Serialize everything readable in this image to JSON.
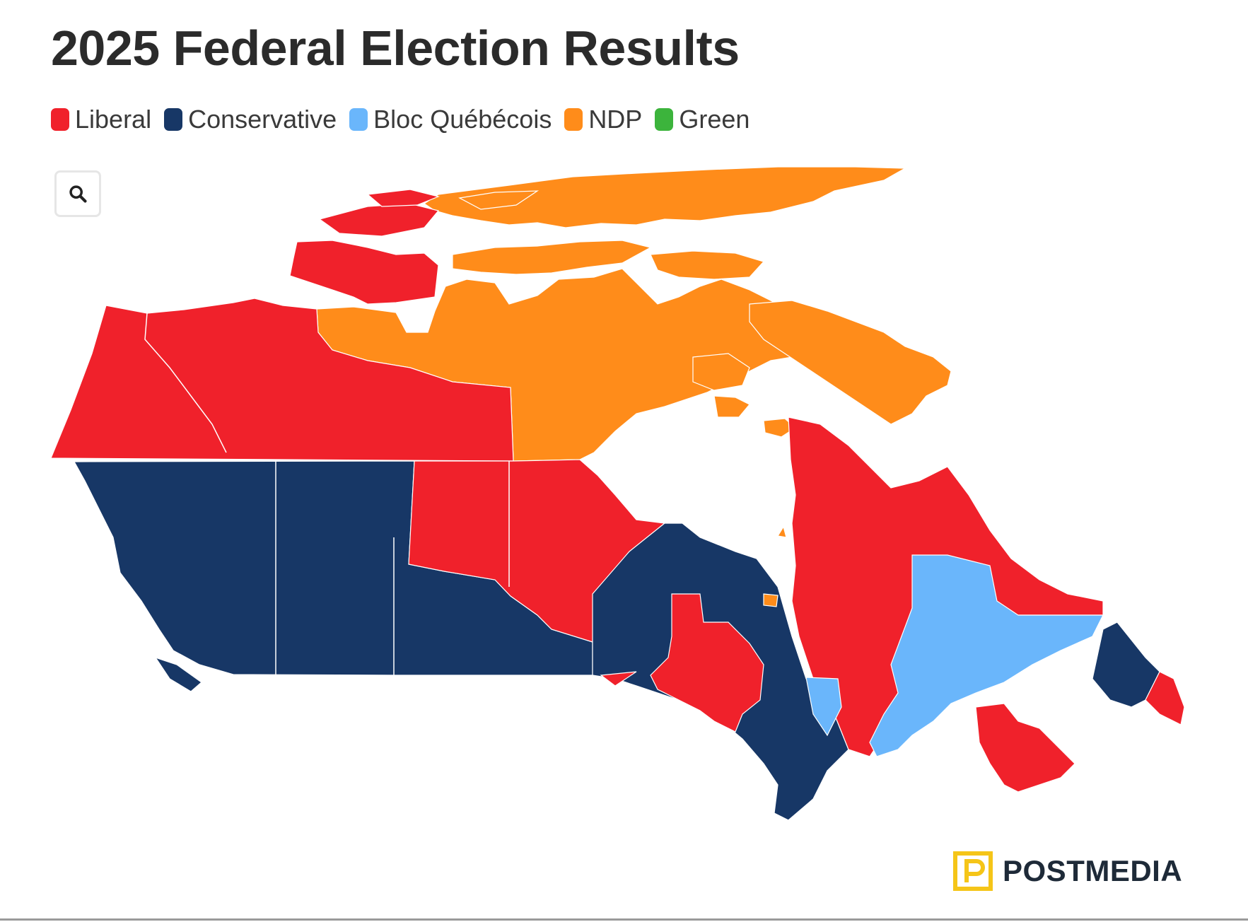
{
  "title": "2025 Federal Election Results",
  "legend": [
    {
      "label": "Liberal",
      "color": "#f0212b"
    },
    {
      "label": "Conservative",
      "color": "#173766"
    },
    {
      "label": "Bloc Québécois",
      "color": "#6ab6fb"
    },
    {
      "label": "NDP",
      "color": "#ff8c1a"
    },
    {
      "label": "Green",
      "color": "#3cb43c"
    }
  ],
  "controls": {
    "zoom_icon": "search-icon"
  },
  "map": {
    "regions": [
      {
        "name": "Yukon",
        "party": "Liberal"
      },
      {
        "name": "Northwest Territories",
        "party": "Liberal"
      },
      {
        "name": "Nunavut",
        "party": "NDP"
      },
      {
        "name": "British Columbia",
        "party": "Conservative"
      },
      {
        "name": "Alberta",
        "party": "Conservative"
      },
      {
        "name": "Saskatchewan",
        "party": "Conservative"
      },
      {
        "name": "Northern Saskatchewan",
        "party": "Liberal"
      },
      {
        "name": "Manitoba",
        "party": "Liberal"
      },
      {
        "name": "Ontario",
        "party": "Conservative"
      },
      {
        "name": "Quebec",
        "party": "Liberal"
      },
      {
        "name": "Quebec (Bloc ridings)",
        "party": "Bloc Québécois"
      },
      {
        "name": "Newfoundland and Labrador",
        "party": "Conservative"
      },
      {
        "name": "Maritimes",
        "party": "Liberal"
      }
    ]
  },
  "brand": {
    "name": "POSTMEDIA",
    "logo_letter": "P",
    "logo_color": "#f5c518"
  }
}
